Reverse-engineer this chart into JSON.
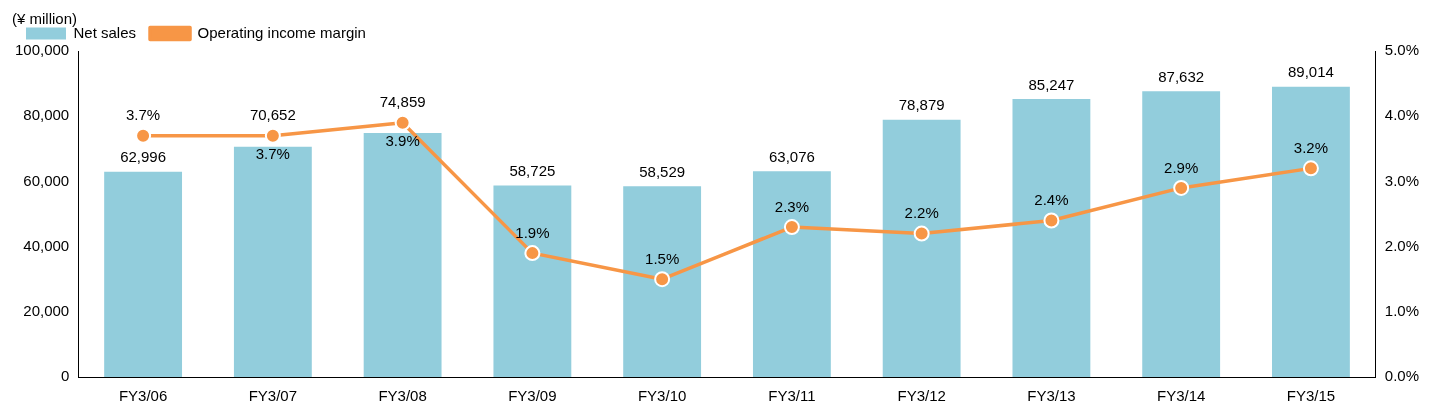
{
  "chart_data": {
    "type": "bar",
    "ylabel": "(¥ million)",
    "categories": [
      "FY3/06",
      "FY3/07",
      "FY3/08",
      "FY3/09",
      "FY3/10",
      "FY3/11",
      "FY3/12",
      "FY3/13",
      "FY3/14",
      "FY3/15"
    ],
    "series": [
      {
        "name": "Net sales",
        "color": "#92cddc",
        "values": [
          62996,
          70652,
          74859,
          58725,
          58529,
          63076,
          78879,
          85247,
          87632,
          89014
        ],
        "value_labels": [
          "62,996",
          "70,652",
          "74,859",
          "58,725",
          "58,529",
          "63,076",
          "78,879",
          "85,247",
          "87,632",
          "89,014"
        ]
      },
      {
        "name": "Operating income margin",
        "type": "line",
        "axis": "y2",
        "color": "#f79646",
        "marker": "circle",
        "values": [
          3.7,
          3.7,
          3.9,
          1.9,
          1.5,
          2.3,
          2.2,
          2.4,
          2.9,
          3.2
        ],
        "value_labels": [
          "3.7%",
          "3.7%",
          "3.9%",
          "1.9%",
          "1.5%",
          "2.3%",
          "2.2%",
          "2.4%",
          "2.9%",
          "3.2%"
        ]
      }
    ],
    "ylim": [
      0,
      100000
    ],
    "yticks": [
      {
        "value": 0,
        "label": "0"
      },
      {
        "value": 20000,
        "label": "20,000"
      },
      {
        "value": 40000,
        "label": "40,000"
      },
      {
        "value": 60000,
        "label": "60,000"
      },
      {
        "value": 80000,
        "label": "80,000"
      },
      {
        "value": 100000,
        "label": "100,000"
      }
    ],
    "y2lim": [
      0,
      5
    ],
    "y2ticks": [
      {
        "value": 0,
        "label": "0.0%"
      },
      {
        "value": 1,
        "label": "1.0%"
      },
      {
        "value": 2,
        "label": "2.0%"
      },
      {
        "value": 3,
        "label": "3.0%"
      },
      {
        "value": 4,
        "label": "4.0%"
      },
      {
        "value": 5,
        "label": "5.0%"
      }
    ],
    "legend": "top left",
    "grid": false
  }
}
